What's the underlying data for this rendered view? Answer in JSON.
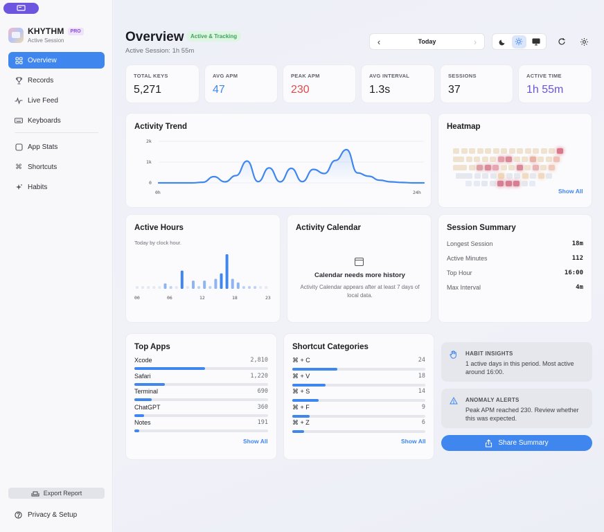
{
  "brand": {
    "name": "KHYTHM",
    "badge": "PRO",
    "subtitle": "Active Session"
  },
  "nav": [
    {
      "label": "Overview",
      "icon": "grid-icon",
      "active": true
    },
    {
      "label": "Records",
      "icon": "trophy-icon"
    },
    {
      "label": "Live Feed",
      "icon": "pulse-icon"
    },
    {
      "label": "Keyboards",
      "icon": "keyboard-icon"
    },
    {
      "label": "App Stats",
      "icon": "square-icon"
    },
    {
      "label": "Shortcuts",
      "icon": "command-icon"
    },
    {
      "label": "Habits",
      "icon": "sparkle-icon"
    }
  ],
  "sidebar_footer": {
    "export": "Export Report",
    "privacy": "Privacy & Setup"
  },
  "header": {
    "title": "Overview",
    "status": "Active & Tracking",
    "session": "Active Session: 1h 55m",
    "date": "Today"
  },
  "stats": [
    {
      "label": "TOTAL KEYS",
      "value": "5,271",
      "color": "#1b1c21"
    },
    {
      "label": "AVG APM",
      "value": "47",
      "color": "#3f86ee"
    },
    {
      "label": "PEAK APM",
      "value": "230",
      "color": "#e04a4a"
    },
    {
      "label": "AVG INTERVAL",
      "value": "1.3s",
      "color": "#1b1c21"
    },
    {
      "label": "SESSIONS",
      "value": "37",
      "color": "#1b1c21"
    },
    {
      "label": "ACTIVE TIME",
      "value": "1h 55m",
      "color": "#6a55d8"
    }
  ],
  "trend": {
    "title": "Activity Trend",
    "y_ticks": [
      "2k",
      "1k",
      "0"
    ],
    "x_start": "0h",
    "x_end": "24h"
  },
  "heatmap": {
    "title": "Heatmap",
    "show_all": "Show All"
  },
  "hours": {
    "title": "Active Hours",
    "subtitle": "Today by clock hour.",
    "ticks": [
      "00",
      "06",
      "12",
      "18",
      "23"
    ]
  },
  "calendar": {
    "title": "Activity Calendar",
    "heading": "Calendar needs more history",
    "body": "Activity Calendar appears after at least 7 days of local data."
  },
  "summary": {
    "title": "Session Summary",
    "rows": [
      {
        "label": "Longest Session",
        "value": "18m"
      },
      {
        "label": "Active Minutes",
        "value": "112"
      },
      {
        "label": "Top Hour",
        "value": "16:00"
      },
      {
        "label": "Max Interval",
        "value": "4m"
      }
    ]
  },
  "top_apps": {
    "title": "Top Apps",
    "show_all": "Show All",
    "items": [
      {
        "name": "Xcode",
        "count": "2,810",
        "pct": 0.53
      },
      {
        "name": "Safari",
        "count": "1,220",
        "pct": 0.23
      },
      {
        "name": "Terminal",
        "count": "690",
        "pct": 0.13
      },
      {
        "name": "ChatGPT",
        "count": "360",
        "pct": 0.07
      },
      {
        "name": "Notes",
        "count": "191",
        "pct": 0.035
      }
    ]
  },
  "shortcuts": {
    "title": "Shortcut Categories",
    "show_all": "Show All",
    "items": [
      {
        "name": "⌘ + C",
        "count": "24",
        "pct": 0.34
      },
      {
        "name": "⌘ + V",
        "count": "18",
        "pct": 0.25
      },
      {
        "name": "⌘ + S",
        "count": "14",
        "pct": 0.2
      },
      {
        "name": "⌘ + F",
        "count": "9",
        "pct": 0.13
      },
      {
        "name": "⌘ + Z",
        "count": "6",
        "pct": 0.09
      }
    ]
  },
  "insights": [
    {
      "title": "HABIT INSIGHTS",
      "icon": "hand-icon",
      "body": "1 active days in this period. Most active around 16:00."
    },
    {
      "title": "ANOMALY ALERTS",
      "icon": "warning-icon",
      "body": "Peak APM reached 230. Review whether this was expected."
    }
  ],
  "share": "Share Summary",
  "chart_data": [
    {
      "type": "line",
      "title": "Activity Trend",
      "y_ticks": [
        "2k",
        "1k",
        "0"
      ],
      "ylim": [
        0,
        2000
      ],
      "x": [
        0,
        1,
        2,
        3,
        4,
        5,
        6,
        7,
        8,
        9,
        10,
        11,
        12,
        13,
        14,
        15,
        16,
        17,
        18,
        19,
        20,
        21,
        22,
        23,
        24
      ],
      "values": [
        0,
        0,
        0,
        0,
        30,
        300,
        50,
        350,
        1050,
        60,
        720,
        50,
        700,
        60,
        650,
        450,
        1080,
        1600,
        480,
        320,
        130,
        50,
        20,
        0,
        0
      ]
    },
    {
      "type": "bar",
      "title": "Active Hours",
      "x": [
        0,
        1,
        2,
        3,
        4,
        5,
        6,
        7,
        8,
        9,
        10,
        11,
        12,
        13,
        14,
        15,
        16,
        17,
        18,
        19,
        20,
        21,
        22,
        23
      ],
      "values": [
        0,
        0,
        0,
        0,
        0,
        6,
        2,
        0,
        20,
        0,
        9,
        2,
        9,
        2,
        11,
        17,
        38,
        11,
        7,
        3,
        2,
        1,
        0,
        0
      ]
    }
  ]
}
